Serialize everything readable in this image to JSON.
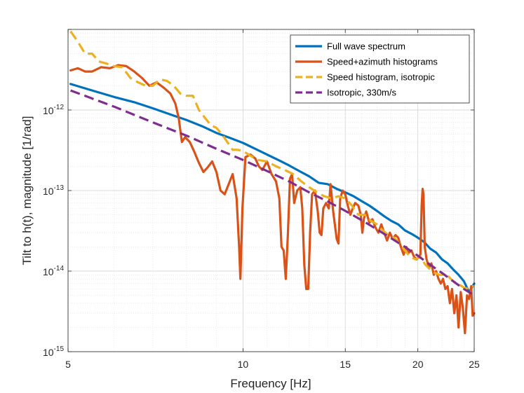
{
  "chart_data": {
    "type": "line",
    "title": "",
    "xlabel": "Frequency [Hz]",
    "ylabel": "Tilt to h(t), magnitude [1/rad]",
    "xscale": "log",
    "yscale": "log",
    "xlim": [
      5,
      25
    ],
    "ylim": [
      1e-15,
      1e-11
    ],
    "grid": true,
    "legend_position": "top-right",
    "x_ticks": [
      {
        "value": 5,
        "label": "5"
      },
      {
        "value": 10,
        "label": "10"
      },
      {
        "value": 15,
        "label": "15"
      },
      {
        "value": 20,
        "label": "20"
      },
      {
        "value": 25,
        "label": "25"
      }
    ],
    "y_ticks": [
      {
        "value": 1e-15,
        "base": "10",
        "exp": "-15"
      },
      {
        "value": 1e-14,
        "base": "10",
        "exp": "-14"
      },
      {
        "value": 1e-13,
        "base": "10",
        "exp": "-13"
      },
      {
        "value": 1e-12,
        "base": "10",
        "exp": "-12"
      }
    ],
    "series": [
      {
        "name": "Full wave spectrum",
        "color": "#0072bd",
        "style": "solid",
        "points": [
          [
            5.05,
            2.1e-12
          ],
          [
            5.5,
            1.75e-12
          ],
          [
            6,
            1.45e-12
          ],
          [
            6.5,
            1.25e-12
          ],
          [
            7,
            1.05e-12
          ],
          [
            7.5,
            8.8e-13
          ],
          [
            8,
            7.5e-13
          ],
          [
            8.5,
            6.3e-13
          ],
          [
            9,
            5.2e-13
          ],
          [
            9.5,
            4.5e-13
          ],
          [
            10,
            3.9e-13
          ],
          [
            10.5,
            3.3e-13
          ],
          [
            11,
            2.8e-13
          ],
          [
            11.5,
            2.4e-13
          ],
          [
            12,
            2.05e-13
          ],
          [
            12.5,
            1.75e-13
          ],
          [
            13,
            1.5e-13
          ],
          [
            13.5,
            1.25e-13
          ],
          [
            14,
            1.2e-13
          ],
          [
            14.5,
            1.05e-13
          ],
          [
            15,
            9.5e-14
          ],
          [
            15.5,
            8.5e-14
          ],
          [
            16,
            7.4e-14
          ],
          [
            16.5,
            6.5e-14
          ],
          [
            17,
            5.6e-14
          ],
          [
            17.5,
            4.8e-14
          ],
          [
            18,
            4.2e-14
          ],
          [
            18.5,
            3.8e-14
          ],
          [
            19,
            3.2e-14
          ],
          [
            19.5,
            2.9e-14
          ],
          [
            20,
            2.6e-14
          ],
          [
            20.5,
            2.3e-14
          ],
          [
            21,
            1.9e-14
          ],
          [
            21.5,
            1.7e-14
          ],
          [
            22,
            1.4e-14
          ],
          [
            22.5,
            1.25e-14
          ],
          [
            23,
            1.05e-14
          ],
          [
            23.5,
            9e-15
          ],
          [
            24,
            7.5e-15
          ],
          [
            24.5,
            5.5e-15
          ],
          [
            25,
            7e-15
          ]
        ]
      },
      {
        "name": "Speed+azimuth histograms",
        "color": "#d95319",
        "style": "solid",
        "points": [
          [
            5.05,
            3.1e-12
          ],
          [
            5.2,
            3.3e-12
          ],
          [
            5.35,
            3e-12
          ],
          [
            5.5,
            3e-12
          ],
          [
            5.7,
            3.4e-12
          ],
          [
            5.9,
            3.3e-12
          ],
          [
            6.1,
            3.6e-12
          ],
          [
            6.3,
            3.5e-12
          ],
          [
            6.5,
            3e-12
          ],
          [
            6.7,
            2.5e-12
          ],
          [
            6.9,
            2e-12
          ],
          [
            7.1,
            2.2e-12
          ],
          [
            7.3,
            1.9e-12
          ],
          [
            7.5,
            1.6e-12
          ],
          [
            7.65,
            1.2e-12
          ],
          [
            7.75,
            8e-13
          ],
          [
            7.85,
            4e-13
          ],
          [
            7.95,
            4.6e-13
          ],
          [
            8.1,
            4e-13
          ],
          [
            8.25,
            3e-13
          ],
          [
            8.4,
            2.2e-13
          ],
          [
            8.55,
            1.7e-13
          ],
          [
            8.7,
            1.95e-13
          ],
          [
            8.85,
            2.3e-13
          ],
          [
            9,
            1.7e-13
          ],
          [
            9.15,
            1e-13
          ],
          [
            9.3,
            9e-14
          ],
          [
            9.45,
            1.2e-13
          ],
          [
            9.6,
            1.6e-13
          ],
          [
            9.75,
            8e-14
          ],
          [
            9.85,
            2e-14
          ],
          [
            9.9,
            8e-15
          ],
          [
            9.98,
            6e-14
          ],
          [
            10.1,
            2.6e-13
          ],
          [
            10.3,
            2.8e-13
          ],
          [
            10.5,
            2.5e-13
          ],
          [
            10.65,
            2e-13
          ],
          [
            10.8,
            1.8e-13
          ],
          [
            11,
            2.3e-13
          ],
          [
            11.2,
            1.6e-13
          ],
          [
            11.4,
            1.3e-13
          ],
          [
            11.55,
            8e-14
          ],
          [
            11.65,
            2e-14
          ],
          [
            11.75,
            1.8e-14
          ],
          [
            11.85,
            8e-15
          ],
          [
            11.95,
            3e-14
          ],
          [
            12.05,
            1.4e-13
          ],
          [
            12.15,
            1.6e-13
          ],
          [
            12.25,
            7e-14
          ],
          [
            12.4,
            1e-13
          ],
          [
            12.55,
            1.1e-13
          ],
          [
            12.65,
            6e-14
          ],
          [
            12.75,
            1.2e-14
          ],
          [
            12.85,
            6e-15
          ],
          [
            12.95,
            6e-15
          ],
          [
            13.05,
            3e-14
          ],
          [
            13.15,
            9e-14
          ],
          [
            13.3,
            1e-13
          ],
          [
            13.45,
            5.5e-14
          ],
          [
            13.55,
            3e-14
          ],
          [
            13.65,
            2.8e-14
          ],
          [
            13.75,
            6e-14
          ],
          [
            13.9,
            7e-14
          ],
          [
            14.05,
            6e-14
          ],
          [
            14.15,
            1.2e-13
          ],
          [
            14.3,
            5.5e-14
          ],
          [
            14.5,
            2.5e-14
          ],
          [
            14.6,
            2.2e-14
          ],
          [
            14.7,
            8e-14
          ],
          [
            14.85,
            1e-13
          ],
          [
            15,
            9e-14
          ],
          [
            15.15,
            6.5e-14
          ],
          [
            15.3,
            5e-14
          ],
          [
            15.45,
            6e-14
          ],
          [
            15.6,
            7e-14
          ],
          [
            15.8,
            6.5e-14
          ],
          [
            15.95,
            5e-14
          ],
          [
            16.05,
            3e-14
          ],
          [
            16.15,
            4.5e-14
          ],
          [
            16.3,
            5.5e-14
          ],
          [
            16.5,
            4e-14
          ],
          [
            16.7,
            4.4e-14
          ],
          [
            16.9,
            3.5e-14
          ],
          [
            17.1,
            3e-14
          ],
          [
            17.3,
            3.8e-14
          ],
          [
            17.5,
            3e-14
          ],
          [
            17.7,
            2.4e-14
          ],
          [
            17.9,
            3e-14
          ],
          [
            18.1,
            2.5e-14
          ],
          [
            18.3,
            2.8e-14
          ],
          [
            18.5,
            2.6e-14
          ],
          [
            18.7,
            2e-14
          ],
          [
            18.9,
            1.6e-14
          ],
          [
            19.1,
            2e-14
          ],
          [
            19.3,
            1.7e-14
          ],
          [
            19.5,
            1.8e-14
          ],
          [
            19.7,
            1.5e-14
          ],
          [
            19.9,
            1.4e-14
          ],
          [
            20.05,
            1.5e-14
          ],
          [
            20.2,
            1.6e-14
          ],
          [
            20.3,
            6.5e-14
          ],
          [
            20.38,
            1.05e-13
          ],
          [
            20.45,
            9e-14
          ],
          [
            20.55,
            2e-14
          ],
          [
            20.7,
            1.4e-14
          ],
          [
            20.9,
            1.1e-14
          ],
          [
            21.1,
            1.25e-14
          ],
          [
            21.3,
            9e-15
          ],
          [
            21.5,
            1e-14
          ],
          [
            21.7,
            8e-15
          ],
          [
            21.9,
            7e-15
          ],
          [
            22.1,
            8e-15
          ],
          [
            22.3,
            6e-15
          ],
          [
            22.5,
            6.5e-15
          ],
          [
            22.7,
            4e-15
          ],
          [
            22.9,
            6e-15
          ],
          [
            23.1,
            3e-15
          ],
          [
            23.3,
            5e-15
          ],
          [
            23.5,
            2e-15
          ],
          [
            23.7,
            5.5e-15
          ],
          [
            23.9,
            3.5e-15
          ],
          [
            24.1,
            1.7e-15
          ],
          [
            24.3,
            5e-15
          ],
          [
            24.5,
            4.5e-15
          ],
          [
            24.7,
            6.5e-15
          ],
          [
            24.85,
            2.8e-15
          ],
          [
            25,
            3e-15
          ]
        ]
      },
      {
        "name": "Speed histogram, isotropic",
        "color": "#edb120",
        "style": "dashed",
        "points": [
          [
            5.05,
            9.5e-12
          ],
          [
            5.2,
            7e-12
          ],
          [
            5.35,
            5e-12
          ],
          [
            5.5,
            5e-12
          ],
          [
            5.65,
            4e-12
          ],
          [
            5.8,
            3.8e-12
          ],
          [
            6,
            3.5e-12
          ],
          [
            6.2,
            3.4e-12
          ],
          [
            6.4,
            2.5e-12
          ],
          [
            6.6,
            2.2e-12
          ],
          [
            6.8,
            2e-12
          ],
          [
            7,
            2e-12
          ],
          [
            7.2,
            2.4e-12
          ],
          [
            7.4,
            2.3e-12
          ],
          [
            7.6,
            2e-12
          ],
          [
            7.8,
            1.6e-12
          ],
          [
            8,
            1.5e-12
          ],
          [
            8.2,
            1.5e-12
          ],
          [
            8.4,
            1e-12
          ],
          [
            8.6,
            8e-13
          ],
          [
            8.8,
            6.5e-13
          ],
          [
            9,
            6e-13
          ],
          [
            9.2,
            5e-13
          ],
          [
            9.4,
            4e-13
          ],
          [
            9.6,
            3.2e-13
          ],
          [
            9.8,
            3.2e-13
          ],
          [
            10,
            3.1e-13
          ],
          [
            10.3,
            2.7e-13
          ],
          [
            10.6,
            2.4e-13
          ],
          [
            11,
            2.3e-13
          ],
          [
            11.4,
            2e-13
          ],
          [
            11.8,
            1.8e-13
          ],
          [
            12.2,
            1.6e-13
          ],
          [
            12.6,
            1.3e-13
          ],
          [
            13,
            1.1e-13
          ],
          [
            13.4,
            9.5e-14
          ],
          [
            13.8,
            8.5e-14
          ],
          [
            14.2,
            8e-14
          ],
          [
            14.6,
            8.5e-14
          ],
          [
            15,
            8e-14
          ],
          [
            15.4,
            6.5e-14
          ],
          [
            15.8,
            5e-14
          ],
          [
            16.2,
            5e-14
          ],
          [
            16.6,
            4.2e-14
          ],
          [
            17,
            3.8e-14
          ],
          [
            17.4,
            3.2e-14
          ],
          [
            17.8,
            2.8e-14
          ],
          [
            18.2,
            2.6e-14
          ],
          [
            18.6,
            2.2e-14
          ],
          [
            19,
            1.8e-14
          ],
          [
            19.4,
            1.5e-14
          ],
          [
            19.8,
            1.4e-14
          ],
          [
            20.2,
            1.5e-14
          ],
          [
            20.6,
            1.2e-14
          ],
          [
            21,
            1.05e-14
          ],
          [
            21.4,
            9.5e-15
          ],
          [
            21.8,
            9e-15
          ],
          [
            22.2,
            9e-15
          ],
          [
            22.6,
            8.5e-15
          ],
          [
            23,
            7.5e-15
          ],
          [
            23.4,
            7e-15
          ],
          [
            23.8,
            6.5e-15
          ],
          [
            24.2,
            6e-15
          ],
          [
            24.6,
            6.5e-15
          ],
          [
            25,
            6.5e-15
          ]
        ]
      },
      {
        "name": "Isotropic, 330m/s",
        "color": "#7e2f8e",
        "style": "dashed",
        "points": [
          [
            5.05,
            1.75e-12
          ],
          [
            6,
            1.1e-12
          ],
          [
            7,
            7e-13
          ],
          [
            8,
            4.8e-13
          ],
          [
            9,
            3.3e-13
          ],
          [
            10,
            2.4e-13
          ],
          [
            11,
            1.75e-13
          ],
          [
            12,
            1.3e-13
          ],
          [
            13,
            9.5e-14
          ],
          [
            14,
            7.3e-14
          ],
          [
            15,
            5.6e-14
          ],
          [
            16,
            4.3e-14
          ],
          [
            17,
            3.3e-14
          ],
          [
            18,
            2.55e-14
          ],
          [
            19,
            2e-14
          ],
          [
            20,
            1.55e-14
          ],
          [
            21,
            1.2e-14
          ],
          [
            22,
            9.5e-15
          ],
          [
            23,
            7.5e-15
          ],
          [
            24,
            6e-15
          ],
          [
            25,
            5e-15
          ]
        ]
      }
    ]
  }
}
